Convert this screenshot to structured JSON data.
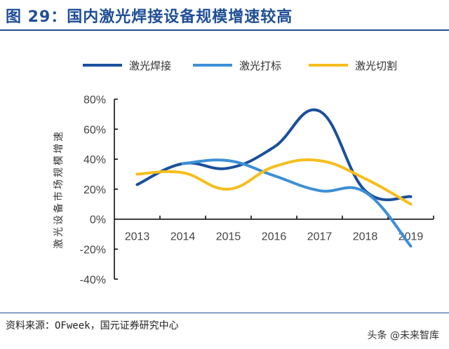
{
  "title": "图 29：国内激光焊接设备规模增速较高",
  "source": "资料来源：OFweek，国元证券研究中心",
  "watermark": "头条 @未来智库",
  "chart_data": {
    "type": "line",
    "title": "",
    "xlabel": "",
    "ylabel": "激光设备市场规模增速",
    "categories": [
      "2013",
      "2014",
      "2015",
      "2016",
      "2017",
      "2018",
      "2019"
    ],
    "ylim": [
      -40,
      80
    ],
    "yticks": [
      "80%",
      "60%",
      "40%",
      "20%",
      "0%",
      "-20%",
      "-40%"
    ],
    "ytick_values": [
      80,
      60,
      40,
      20,
      0,
      -20,
      -40
    ],
    "legend": "top",
    "grid": false,
    "series": [
      {
        "name": "激光焊接",
        "color": "#1a4f9c",
        "values": [
          23,
          37,
          34,
          48,
          72,
          19,
          15
        ]
      },
      {
        "name": "激光打标",
        "color": "#3d8fd6",
        "values": [
          null,
          37,
          39,
          29,
          19,
          18,
          -18
        ]
      },
      {
        "name": "激光切割",
        "color": "#f6be1c",
        "values": [
          30,
          31,
          20,
          35,
          39,
          27,
          10
        ]
      }
    ]
  }
}
